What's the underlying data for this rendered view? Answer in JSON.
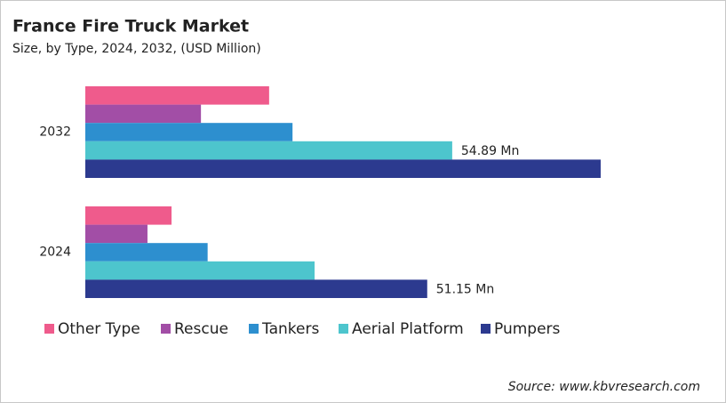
{
  "chart_data": {
    "type": "bar",
    "orientation": "horizontal",
    "title": "France Fire Truck Market",
    "subtitle": "Size, by Type, 2024, 2032, (USD Million)",
    "source": "Source: www.kbvresearch.com",
    "categories": [
      "2032",
      "2024"
    ],
    "xlim": [
      0,
      90
    ],
    "series": [
      {
        "name": "Other Type",
        "color": "#ef5b8c",
        "values": [
          27.5,
          12.9
        ]
      },
      {
        "name": "Rescue",
        "color": "#a24ea6",
        "values": [
          17.3,
          9.3
        ]
      },
      {
        "name": "Tankers",
        "color": "#2d8fcf",
        "values": [
          31.0,
          18.3
        ]
      },
      {
        "name": "Aerial Platform",
        "color": "#4dc5cd",
        "values": [
          54.89,
          34.3
        ],
        "value_labels": [
          "54.89 Mn",
          null
        ]
      },
      {
        "name": "Pumpers",
        "color": "#2c3a8f",
        "values": [
          77.1,
          51.15
        ],
        "value_labels": [
          null,
          "51.15 Mn"
        ]
      }
    ]
  }
}
